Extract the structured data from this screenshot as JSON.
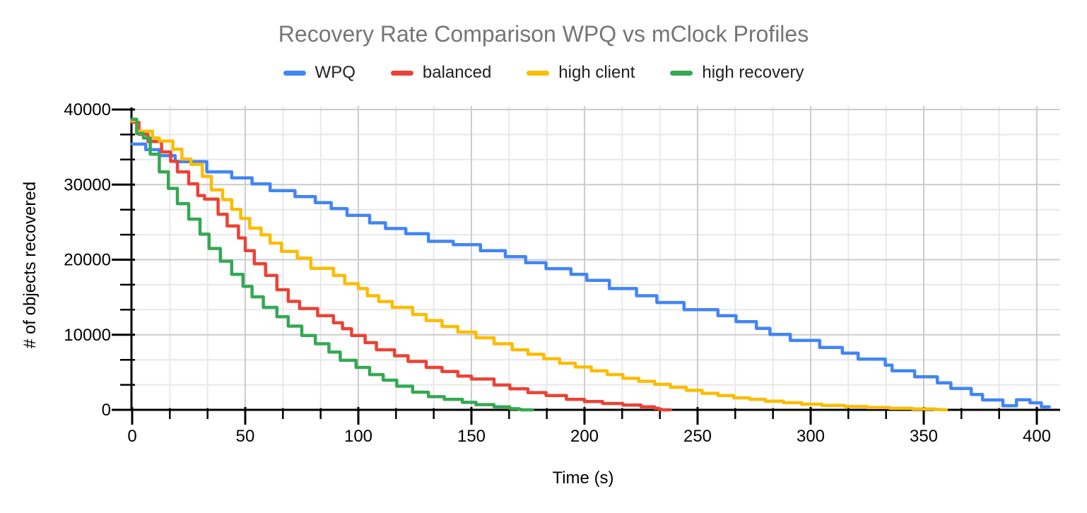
{
  "title": "Recovery Rate Comparison WPQ vs mClock Profiles",
  "styles": {
    "background": "#ffffff",
    "title_color": "#757575",
    "tick_label_color": "#000000",
    "axis_title_color": "#000000",
    "legend_text_color": "#212121",
    "axis_color": "#000000",
    "major_grid_color": "#cccccc",
    "minor_grid_color": "#e8e8e8"
  },
  "chart_data": {
    "type": "line",
    "step": "after",
    "title": "Recovery Rate Comparison WPQ vs mClock Profiles",
    "xlabel": "Time (s)",
    "ylabel": "# of objects recovered",
    "xlim": [
      0,
      410
    ],
    "ylim": [
      0,
      40000
    ],
    "x_major_ticks": [
      0,
      50,
      100,
      150,
      200,
      250,
      300,
      350,
      400
    ],
    "y_major_ticks": [
      0,
      10000,
      20000,
      30000,
      40000
    ],
    "x_minor_step": 16.6667,
    "y_minor_step": 3333.3333,
    "grid": "on",
    "legend_position": "top",
    "series": [
      {
        "name": "WPQ",
        "color": "#4285f4",
        "points": [
          [
            0,
            35400
          ],
          [
            6,
            34650
          ],
          [
            12,
            33850
          ],
          [
            19,
            33050
          ],
          [
            33,
            31700
          ],
          [
            44,
            30900
          ],
          [
            53,
            30100
          ],
          [
            61,
            29200
          ],
          [
            72,
            28400
          ],
          [
            81,
            27600
          ],
          [
            88,
            26800
          ],
          [
            95,
            25900
          ],
          [
            105,
            24900
          ],
          [
            112,
            24150
          ],
          [
            121,
            23450
          ],
          [
            131,
            22450
          ],
          [
            142,
            22000
          ],
          [
            154,
            21200
          ],
          [
            165,
            20400
          ],
          [
            174,
            19600
          ],
          [
            183,
            18800
          ],
          [
            194,
            18050
          ],
          [
            201,
            17250
          ],
          [
            211,
            16150
          ],
          [
            223,
            15200
          ],
          [
            232,
            14300
          ],
          [
            244,
            13350
          ],
          [
            259,
            12550
          ],
          [
            267,
            11750
          ],
          [
            276,
            10850
          ],
          [
            282,
            10050
          ],
          [
            291,
            9250
          ],
          [
            304,
            8300
          ],
          [
            314,
            7550
          ],
          [
            321,
            6750
          ],
          [
            333,
            5950
          ],
          [
            336,
            5200
          ],
          [
            346,
            4400
          ],
          [
            356,
            3600
          ],
          [
            362,
            2850
          ],
          [
            371,
            2050
          ],
          [
            376,
            1320
          ],
          [
            385,
            540
          ],
          [
            391,
            1340
          ],
          [
            397,
            940
          ],
          [
            402,
            405
          ],
          [
            405.5,
            405
          ]
        ]
      },
      {
        "name": "balanced",
        "color": "#ea4335",
        "points": [
          [
            0,
            38300
          ],
          [
            3,
            36700
          ],
          [
            7,
            35750
          ],
          [
            13,
            34350
          ],
          [
            17,
            33100
          ],
          [
            20,
            31700
          ],
          [
            25,
            30100
          ],
          [
            29,
            28550
          ],
          [
            32,
            28080
          ],
          [
            38,
            26050
          ],
          [
            42,
            24500
          ],
          [
            47,
            22900
          ],
          [
            50,
            21200
          ],
          [
            54,
            19450
          ],
          [
            59,
            17900
          ],
          [
            64,
            16000
          ],
          [
            69,
            14450
          ],
          [
            74,
            13500
          ],
          [
            82,
            12550
          ],
          [
            89,
            11600
          ],
          [
            93,
            10800
          ],
          [
            97,
            9900
          ],
          [
            103,
            8950
          ],
          [
            108,
            8000
          ],
          [
            116,
            7200
          ],
          [
            122,
            6450
          ],
          [
            130,
            5650
          ],
          [
            137,
            5100
          ],
          [
            144,
            4500
          ],
          [
            150,
            4100
          ],
          [
            160,
            3300
          ],
          [
            167,
            2800
          ],
          [
            175,
            2300
          ],
          [
            183,
            1900
          ],
          [
            192,
            1400
          ],
          [
            200,
            1100
          ],
          [
            208,
            850
          ],
          [
            217,
            630
          ],
          [
            225,
            400
          ],
          [
            231,
            200
          ],
          [
            233,
            80
          ],
          [
            234,
            0
          ],
          [
            238,
            0
          ]
        ]
      },
      {
        "name": "high client",
        "color": "#fbbc04",
        "points": [
          [
            0,
            38500
          ],
          [
            2,
            37100
          ],
          [
            9,
            36200
          ],
          [
            12,
            35800
          ],
          [
            18,
            34700
          ],
          [
            22,
            33400
          ],
          [
            26,
            32700
          ],
          [
            31,
            31100
          ],
          [
            35,
            29300
          ],
          [
            40,
            28000
          ],
          [
            44,
            26700
          ],
          [
            48,
            25500
          ],
          [
            52,
            24200
          ],
          [
            57,
            23300
          ],
          [
            61,
            22200
          ],
          [
            66,
            21100
          ],
          [
            73,
            20200
          ],
          [
            79,
            18850
          ],
          [
            89,
            17900
          ],
          [
            94,
            16800
          ],
          [
            100,
            16150
          ],
          [
            104,
            15200
          ],
          [
            109,
            14430
          ],
          [
            115,
            13650
          ],
          [
            124,
            12700
          ],
          [
            130,
            11900
          ],
          [
            137,
            11100
          ],
          [
            144,
            10350
          ],
          [
            152,
            9600
          ],
          [
            160,
            8800
          ],
          [
            168,
            8000
          ],
          [
            175,
            7400
          ],
          [
            182,
            6800
          ],
          [
            189,
            6200
          ],
          [
            196,
            5700
          ],
          [
            203,
            5200
          ],
          [
            210,
            4700
          ],
          [
            217,
            4200
          ],
          [
            224,
            3800
          ],
          [
            231,
            3400
          ],
          [
            238,
            3000
          ],
          [
            245,
            2600
          ],
          [
            252,
            2200
          ],
          [
            259,
            1900
          ],
          [
            266,
            1600
          ],
          [
            273,
            1400
          ],
          [
            280,
            1150
          ],
          [
            288,
            950
          ],
          [
            296,
            750
          ],
          [
            305,
            580
          ],
          [
            315,
            430
          ],
          [
            325,
            300
          ],
          [
            335,
            200
          ],
          [
            345,
            120
          ],
          [
            355,
            50
          ],
          [
            357,
            20
          ],
          [
            358,
            0
          ],
          [
            360,
            0
          ]
        ]
      },
      {
        "name": "high recovery",
        "color": "#34a853",
        "points": [
          [
            0,
            38700
          ],
          [
            2,
            36800
          ],
          [
            5,
            36200
          ],
          [
            8,
            34050
          ],
          [
            12,
            31700
          ],
          [
            16,
            29500
          ],
          [
            20,
            27450
          ],
          [
            25,
            25400
          ],
          [
            30,
            23400
          ],
          [
            34,
            21500
          ],
          [
            39,
            19800
          ],
          [
            44,
            18050
          ],
          [
            49,
            16450
          ],
          [
            53,
            15050
          ],
          [
            58,
            13650
          ],
          [
            64,
            12400
          ],
          [
            69,
            11150
          ],
          [
            75,
            9900
          ],
          [
            81,
            8800
          ],
          [
            87,
            7700
          ],
          [
            92,
            6600
          ],
          [
            99,
            5650
          ],
          [
            105,
            4700
          ],
          [
            111,
            3950
          ],
          [
            117,
            3150
          ],
          [
            124,
            2350
          ],
          [
            131,
            1750
          ],
          [
            138,
            1400
          ],
          [
            146,
            1000
          ],
          [
            152,
            700
          ],
          [
            160,
            400
          ],
          [
            167,
            150
          ],
          [
            171,
            60
          ],
          [
            172,
            0
          ],
          [
            177,
            0
          ]
        ]
      }
    ]
  }
}
